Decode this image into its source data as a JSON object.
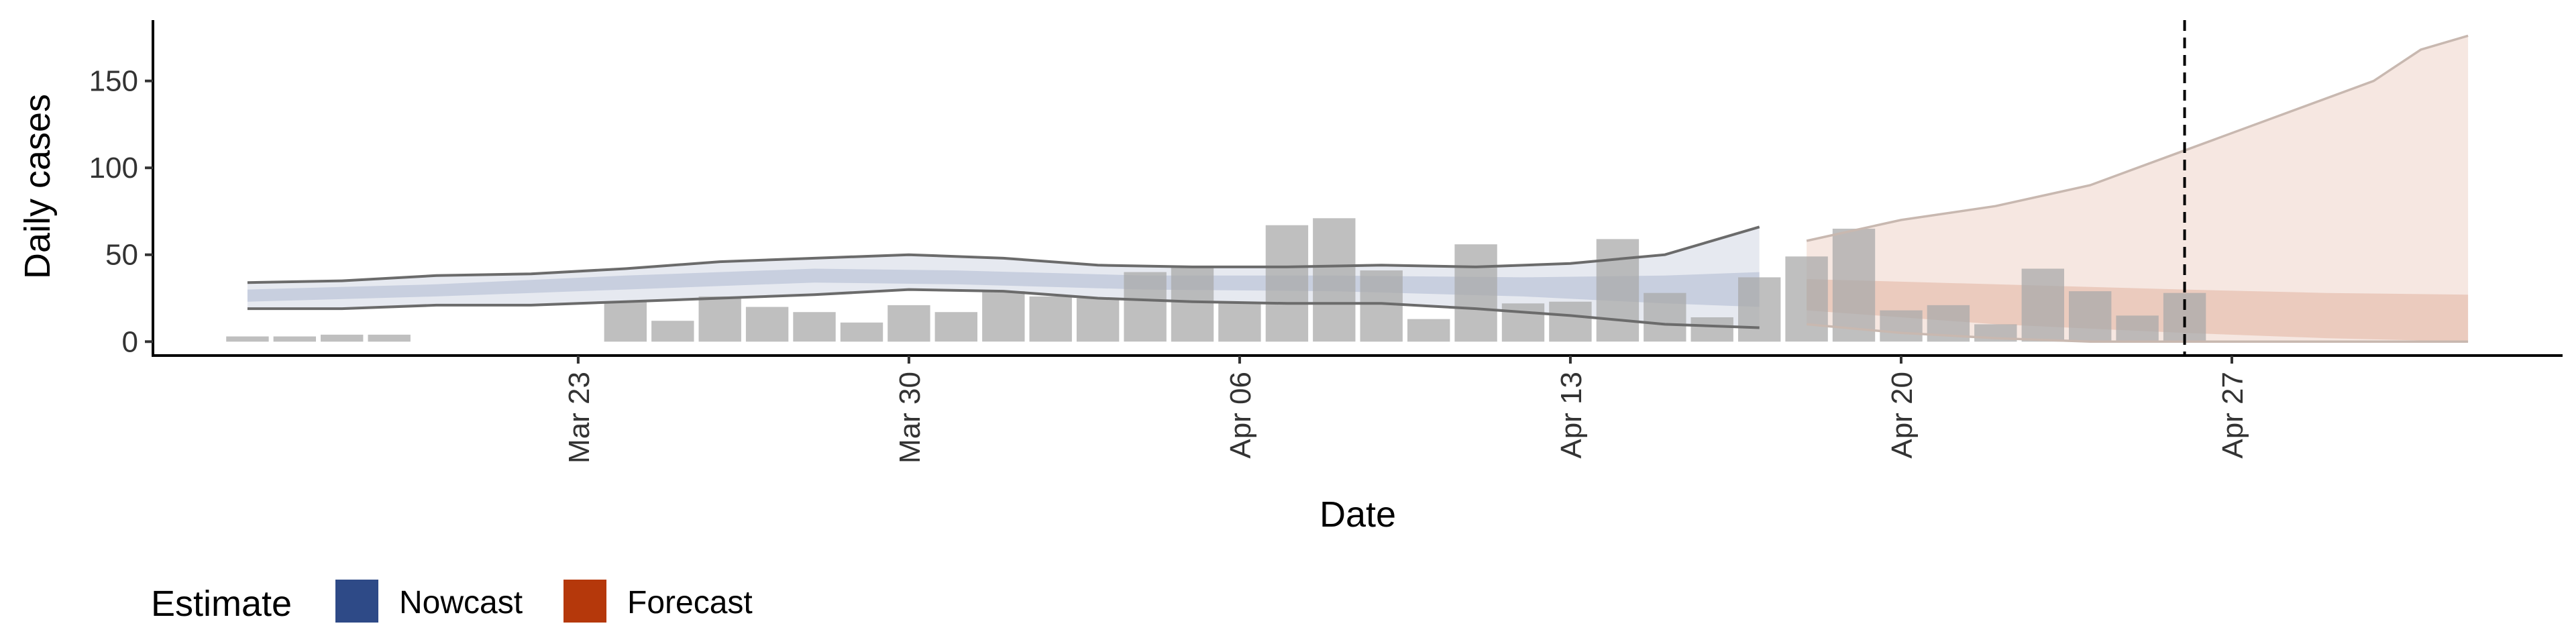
{
  "chart_data": {
    "type": "bar",
    "xlabel": "Date",
    "ylabel": "Daily cases",
    "ylim": [
      -8,
      185
    ],
    "y_ticks": [
      0,
      50,
      100,
      150
    ],
    "x_range": [
      "2020-03-14",
      "2020-05-04"
    ],
    "x_ticks": [
      {
        "date": "2020-03-23",
        "label": "Mar 23"
      },
      {
        "date": "2020-03-30",
        "label": "Mar 30"
      },
      {
        "date": "2020-04-06",
        "label": "Apr 06"
      },
      {
        "date": "2020-04-13",
        "label": "Apr 13"
      },
      {
        "date": "2020-04-20",
        "label": "Apr 20"
      },
      {
        "date": "2020-04-27",
        "label": "Apr 27"
      }
    ],
    "grid": false,
    "bar_color": "#a9a9a9",
    "reported_cases": [
      {
        "date": "2020-03-16",
        "value": 3
      },
      {
        "date": "2020-03-17",
        "value": 3
      },
      {
        "date": "2020-03-18",
        "value": 4
      },
      {
        "date": "2020-03-19",
        "value": 4
      },
      {
        "date": "2020-03-24",
        "value": 23
      },
      {
        "date": "2020-03-25",
        "value": 12
      },
      {
        "date": "2020-03-26",
        "value": 26
      },
      {
        "date": "2020-03-27",
        "value": 20
      },
      {
        "date": "2020-03-28",
        "value": 17
      },
      {
        "date": "2020-03-29",
        "value": 11
      },
      {
        "date": "2020-03-30",
        "value": 21
      },
      {
        "date": "2020-03-31",
        "value": 17
      },
      {
        "date": "2020-04-01",
        "value": 29
      },
      {
        "date": "2020-04-02",
        "value": 26
      },
      {
        "date": "2020-04-03",
        "value": 25
      },
      {
        "date": "2020-04-04",
        "value": 40
      },
      {
        "date": "2020-04-05",
        "value": 43
      },
      {
        "date": "2020-04-06",
        "value": 22
      },
      {
        "date": "2020-04-07",
        "value": 67
      },
      {
        "date": "2020-04-08",
        "value": 71
      },
      {
        "date": "2020-04-09",
        "value": 41
      },
      {
        "date": "2020-04-10",
        "value": 13
      },
      {
        "date": "2020-04-11",
        "value": 56
      },
      {
        "date": "2020-04-12",
        "value": 22
      },
      {
        "date": "2020-04-13",
        "value": 23
      },
      {
        "date": "2020-04-14",
        "value": 59
      },
      {
        "date": "2020-04-15",
        "value": 28
      },
      {
        "date": "2020-04-16",
        "value": 14
      },
      {
        "date": "2020-04-17",
        "value": 37
      },
      {
        "date": "2020-04-18",
        "value": 49
      },
      {
        "date": "2020-04-19",
        "value": 65
      },
      {
        "date": "2020-04-20",
        "value": 18
      },
      {
        "date": "2020-04-21",
        "value": 21
      },
      {
        "date": "2020-04-22",
        "value": 10
      },
      {
        "date": "2020-04-23",
        "value": 42
      },
      {
        "date": "2020-04-24",
        "value": 29
      },
      {
        "date": "2020-04-25",
        "value": 15
      },
      {
        "date": "2020-04-26",
        "value": 28
      }
    ],
    "vline_date": "2020-04-26",
    "series": [
      {
        "name": "Nowcast",
        "color": "#2e4a87",
        "band_90": [
          {
            "date": "2020-03-16",
            "lower": 19,
            "upper": 34
          },
          {
            "date": "2020-03-18",
            "lower": 19,
            "upper": 35
          },
          {
            "date": "2020-03-20",
            "lower": 21,
            "upper": 38
          },
          {
            "date": "2020-03-22",
            "lower": 21,
            "upper": 39
          },
          {
            "date": "2020-03-24",
            "lower": 23,
            "upper": 42
          },
          {
            "date": "2020-03-26",
            "lower": 25,
            "upper": 46
          },
          {
            "date": "2020-03-28",
            "lower": 27,
            "upper": 48
          },
          {
            "date": "2020-03-30",
            "lower": 30,
            "upper": 50
          },
          {
            "date": "2020-04-01",
            "lower": 29,
            "upper": 48
          },
          {
            "date": "2020-04-03",
            "lower": 25,
            "upper": 44
          },
          {
            "date": "2020-04-05",
            "lower": 23,
            "upper": 43
          },
          {
            "date": "2020-04-07",
            "lower": 22,
            "upper": 43
          },
          {
            "date": "2020-04-09",
            "lower": 22,
            "upper": 44
          },
          {
            "date": "2020-04-11",
            "lower": 19,
            "upper": 43
          },
          {
            "date": "2020-04-13",
            "lower": 15,
            "upper": 45
          },
          {
            "date": "2020-04-15",
            "lower": 10,
            "upper": 50
          },
          {
            "date": "2020-04-17",
            "lower": 8,
            "upper": 66
          }
        ],
        "band_50": [
          {
            "date": "2020-03-16",
            "lower": 23,
            "upper": 30
          },
          {
            "date": "2020-03-20",
            "lower": 26,
            "upper": 33
          },
          {
            "date": "2020-03-24",
            "lower": 30,
            "upper": 38
          },
          {
            "date": "2020-03-28",
            "lower": 34,
            "upper": 42
          },
          {
            "date": "2020-03-31",
            "lower": 33,
            "upper": 41
          },
          {
            "date": "2020-04-04",
            "lower": 30,
            "upper": 38
          },
          {
            "date": "2020-04-08",
            "lower": 29,
            "upper": 38
          },
          {
            "date": "2020-04-12",
            "lower": 26,
            "upper": 37
          },
          {
            "date": "2020-04-15",
            "lower": 22,
            "upper": 38
          },
          {
            "date": "2020-04-17",
            "lower": 20,
            "upper": 40
          }
        ]
      },
      {
        "name": "Forecast",
        "color": "#b5380b",
        "band_90": [
          {
            "date": "2020-04-18",
            "lower": 10,
            "upper": 58
          },
          {
            "date": "2020-04-20",
            "lower": 5,
            "upper": 70
          },
          {
            "date": "2020-04-22",
            "lower": 2,
            "upper": 78
          },
          {
            "date": "2020-04-24",
            "lower": 0,
            "upper": 90
          },
          {
            "date": "2020-04-26",
            "lower": 0,
            "upper": 110
          },
          {
            "date": "2020-04-28",
            "lower": 0,
            "upper": 130
          },
          {
            "date": "2020-04-30",
            "lower": 0,
            "upper": 150
          },
          {
            "date": "2020-05-01",
            "lower": 0,
            "upper": 168
          },
          {
            "date": "2020-05-02",
            "lower": 0,
            "upper": 176
          }
        ],
        "band_50": [
          {
            "date": "2020-04-18",
            "lower": 18,
            "upper": 36
          },
          {
            "date": "2020-04-22",
            "lower": 10,
            "upper": 33
          },
          {
            "date": "2020-04-26",
            "lower": 5,
            "upper": 30
          },
          {
            "date": "2020-04-29",
            "lower": 2,
            "upper": 28
          },
          {
            "date": "2020-05-02",
            "lower": 0,
            "upper": 27
          }
        ]
      }
    ]
  },
  "legend": {
    "title": "Estimate",
    "items": [
      {
        "label": "Nowcast",
        "color": "#2e4a87"
      },
      {
        "label": "Forecast",
        "color": "#b5380b"
      }
    ]
  }
}
